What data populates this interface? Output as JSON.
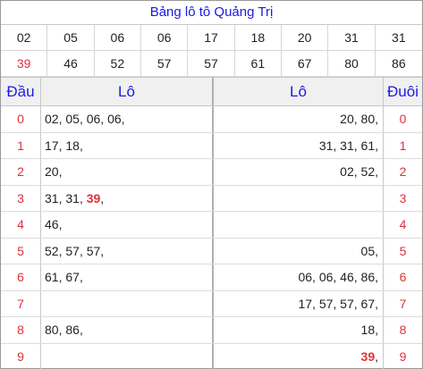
{
  "title": "Bảng lô tô Quảng Trị",
  "numbers_row1": [
    "02",
    "05",
    "06",
    "06",
    "17",
    "18",
    "20",
    "31",
    "31"
  ],
  "numbers_row2": [
    "39",
    "46",
    "52",
    "57",
    "57",
    "61",
    "67",
    "80",
    "86"
  ],
  "highlight_number": "39",
  "header": {
    "dau": "Đầu",
    "lo_left": "Lô",
    "lo_right": "Lô",
    "duoi": "Đuôi"
  },
  "rows": [
    {
      "digit": "0",
      "dau": [
        "02",
        "05",
        "06",
        "06"
      ],
      "duoi": [
        "20",
        "80"
      ]
    },
    {
      "digit": "1",
      "dau": [
        "17",
        "18"
      ],
      "duoi": [
        "31",
        "31",
        "61"
      ]
    },
    {
      "digit": "2",
      "dau": [
        "20"
      ],
      "duoi": [
        "02",
        "52"
      ]
    },
    {
      "digit": "3",
      "dau": [
        "31",
        "31",
        "39"
      ],
      "duoi": []
    },
    {
      "digit": "4",
      "dau": [
        "46"
      ],
      "duoi": []
    },
    {
      "digit": "5",
      "dau": [
        "52",
        "57",
        "57"
      ],
      "duoi": [
        "05"
      ]
    },
    {
      "digit": "6",
      "dau": [
        "61",
        "67"
      ],
      "duoi": [
        "06",
        "06",
        "46",
        "86"
      ]
    },
    {
      "digit": "7",
      "dau": [],
      "duoi": [
        "17",
        "57",
        "57",
        "67"
      ]
    },
    {
      "digit": "8",
      "dau": [
        "80",
        "86"
      ],
      "duoi": [
        "18"
      ]
    },
    {
      "digit": "9",
      "dau": [],
      "duoi": [
        "39"
      ]
    }
  ],
  "colors": {
    "title_blue": "#1a1ae6",
    "accent_red": "#e0303a",
    "header_bg": "#f0f0f0"
  }
}
